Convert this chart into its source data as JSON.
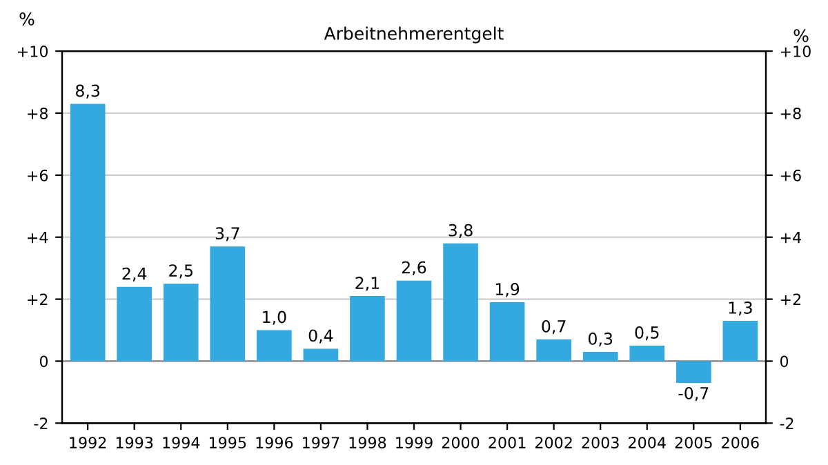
{
  "chart_data": {
    "type": "bar",
    "title": "Arbeitnehmerentgelt",
    "ylabel": "%",
    "y2label": "%",
    "categories": [
      "1992",
      "1993",
      "1994",
      "1995",
      "1996",
      "1997",
      "1998",
      "1999",
      "2000",
      "2001",
      "2002",
      "2003",
      "2004",
      "2005",
      "2006"
    ],
    "values": [
      8.3,
      2.4,
      2.5,
      3.7,
      1.0,
      0.4,
      2.1,
      2.6,
      3.8,
      1.9,
      0.7,
      0.3,
      0.5,
      -0.7,
      1.3
    ],
    "value_labels": [
      "8,3",
      "2,4",
      "2,5",
      "3,7",
      "1,0",
      "0,4",
      "2,1",
      "2,6",
      "3,8",
      "1,9",
      "0,7",
      "0,3",
      "0,5",
      "-0,7",
      "1,3"
    ],
    "color": "#33a9e0",
    "ylim": [
      -2,
      10
    ],
    "yticks": [
      {
        "value": 10,
        "label": "+10"
      },
      {
        "value": 8,
        "label": "+8"
      },
      {
        "value": 6,
        "label": "+6"
      },
      {
        "value": 4,
        "label": "+4"
      },
      {
        "value": 2,
        "label": "+2"
      },
      0,
      -2
    ],
    "y2lim": [
      -2,
      10
    ],
    "y2ticks": [
      {
        "value": 10,
        "label": "+10"
      },
      {
        "value": 8,
        "label": "+8"
      },
      {
        "value": 6,
        "label": "+6"
      },
      {
        "value": 4,
        "label": "+4"
      },
      {
        "value": 2,
        "label": "+2"
      },
      0,
      -2
    ],
    "grid": "y",
    "legend": false
  }
}
